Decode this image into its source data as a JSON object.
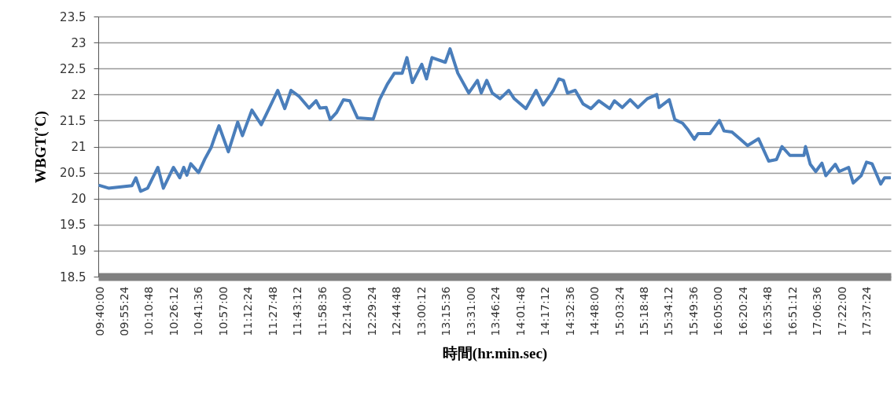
{
  "chart_data": {
    "type": "line",
    "xlabel": "時間(hr.min.sec)",
    "ylabel": "WBGT(˚C)",
    "xlim": [
      9.65,
      17.87
    ],
    "ylim": [
      18.5,
      23.5
    ],
    "yticks": [
      18.5,
      19,
      19.5,
      20,
      20.5,
      21,
      21.5,
      22,
      22.5,
      23,
      23.5
    ],
    "xticks": [
      {
        "value": 9.6667,
        "label": "09:40:00"
      },
      {
        "value": 9.9233,
        "label": "09:55:24"
      },
      {
        "value": 10.18,
        "label": "10:10:48"
      },
      {
        "value": 10.4367,
        "label": "10:26:12"
      },
      {
        "value": 10.6933,
        "label": "10:41:36"
      },
      {
        "value": 10.95,
        "label": "10:57:00"
      },
      {
        "value": 11.2067,
        "label": "11:12:24"
      },
      {
        "value": 11.4633,
        "label": "11:27:48"
      },
      {
        "value": 11.72,
        "label": "11:43:12"
      },
      {
        "value": 11.9767,
        "label": "11:58:36"
      },
      {
        "value": 12.2333,
        "label": "12:14:00"
      },
      {
        "value": 12.49,
        "label": "12:29:24"
      },
      {
        "value": 12.7467,
        "label": "12:44:48"
      },
      {
        "value": 13.0033,
        "label": "13:00:12"
      },
      {
        "value": 13.26,
        "label": "13:15:36"
      },
      {
        "value": 13.5167,
        "label": "13:31:00"
      },
      {
        "value": 13.7733,
        "label": "13:46:24"
      },
      {
        "value": 14.03,
        "label": "14:01:48"
      },
      {
        "value": 14.2867,
        "label": "14:17:12"
      },
      {
        "value": 14.5433,
        "label": "14:32:36"
      },
      {
        "value": 14.8,
        "label": "14:48:00"
      },
      {
        "value": 15.0567,
        "label": "15:03:24"
      },
      {
        "value": 15.3133,
        "label": "15:18:48"
      },
      {
        "value": 15.57,
        "label": "15:34:12"
      },
      {
        "value": 15.8267,
        "label": "15:49:36"
      },
      {
        "value": 16.0833,
        "label": "16:05:00"
      },
      {
        "value": 16.34,
        "label": "16:20:24"
      },
      {
        "value": 16.5967,
        "label": "16:35:48"
      },
      {
        "value": 16.8533,
        "label": "16:51:12"
      },
      {
        "value": 17.11,
        "label": "17:06:36"
      },
      {
        "value": 17.3667,
        "label": "17:22:00"
      },
      {
        "value": 17.6233,
        "label": "17:37:24"
      }
    ],
    "grid": "y",
    "line_style": "solid",
    "x": [
      9.667,
      9.756,
      10.0,
      10.04,
      10.089,
      10.162,
      10.268,
      10.325,
      10.43,
      10.495,
      10.536,
      10.569,
      10.609,
      10.69,
      10.755,
      10.82,
      10.861,
      10.902,
      10.999,
      11.096,
      11.145,
      11.243,
      11.34,
      11.421,
      11.511,
      11.584,
      11.649,
      11.73,
      11.836,
      11.909,
      11.949,
      12.014,
      12.055,
      12.12,
      12.193,
      12.258,
      12.339,
      12.502,
      12.567,
      12.648,
      12.721,
      12.802,
      12.851,
      12.908,
      13.005,
      13.054,
      13.111,
      13.249,
      13.298,
      13.379,
      13.492,
      13.582,
      13.622,
      13.679,
      13.736,
      13.817,
      13.907,
      13.964,
      14.085,
      14.191,
      14.264,
      14.37,
      14.427,
      14.475,
      14.516,
      14.597,
      14.678,
      14.76,
      14.841,
      14.954,
      15.003,
      15.084,
      15.166,
      15.247,
      15.344,
      15.442,
      15.466,
      15.572,
      15.629,
      15.71,
      15.767,
      15.832,
      15.872,
      15.994,
      16.092,
      16.14,
      16.222,
      16.303,
      16.384,
      16.498,
      16.603,
      16.684,
      16.741,
      16.823,
      16.969,
      16.985,
      17.034,
      17.091,
      17.155,
      17.196,
      17.294,
      17.334,
      17.432,
      17.48,
      17.562,
      17.618,
      17.675,
      17.765,
      17.805,
      17.862
    ],
    "series": [
      {
        "color": "#4a7ebb",
        "values": [
          20.25,
          20.2,
          20.25,
          20.4,
          20.14,
          20.2,
          20.6,
          20.2,
          20.6,
          20.4,
          20.6,
          20.45,
          20.67,
          20.5,
          20.76,
          20.98,
          21.2,
          21.4,
          20.9,
          21.47,
          21.21,
          21.7,
          21.42,
          21.73,
          22.08,
          21.73,
          22.08,
          21.97,
          21.74,
          21.88,
          21.74,
          21.75,
          21.52,
          21.65,
          21.9,
          21.88,
          21.55,
          21.53,
          21.9,
          22.2,
          22.41,
          22.41,
          22.71,
          22.23,
          22.58,
          22.3,
          22.71,
          22.62,
          22.88,
          22.41,
          22.03,
          22.27,
          22.03,
          22.27,
          22.03,
          21.92,
          22.08,
          21.92,
          21.73,
          22.08,
          21.8,
          22.08,
          22.3,
          22.27,
          22.03,
          22.08,
          21.82,
          21.73,
          21.88,
          21.73,
          21.88,
          21.75,
          21.9,
          21.75,
          21.92,
          22.0,
          21.75,
          21.9,
          21.52,
          21.45,
          21.32,
          21.14,
          21.25,
          21.25,
          21.5,
          21.3,
          21.28,
          21.15,
          21.02,
          21.15,
          20.72,
          20.75,
          21.0,
          20.83,
          20.83,
          21.0,
          20.66,
          20.52,
          20.68,
          20.44,
          20.66,
          20.52,
          20.6,
          20.3,
          20.44,
          20.7,
          20.67,
          20.28,
          20.4,
          20.4
        ]
      }
    ]
  }
}
